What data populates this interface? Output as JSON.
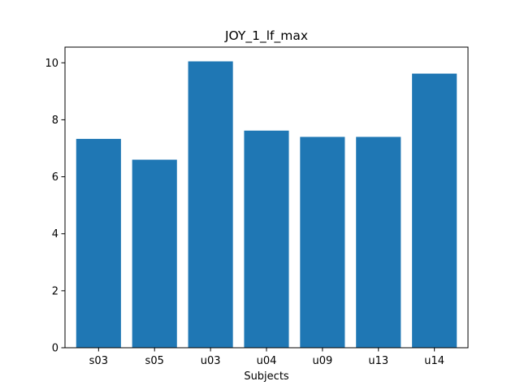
{
  "chart_data": {
    "type": "bar",
    "title": "JOY_1_lf_max",
    "xlabel": "Subjects",
    "ylabel": "",
    "categories": [
      "s03",
      "s05",
      "u03",
      "u04",
      "u09",
      "u13",
      "u14"
    ],
    "values": [
      7.33,
      6.6,
      10.05,
      7.62,
      7.4,
      7.4,
      9.62
    ],
    "ylim": [
      0,
      10.55
    ],
    "yticks": [
      0,
      2,
      4,
      6,
      8,
      10
    ],
    "grid": false,
    "legend": "none",
    "bar_color": "#1f77b4"
  }
}
